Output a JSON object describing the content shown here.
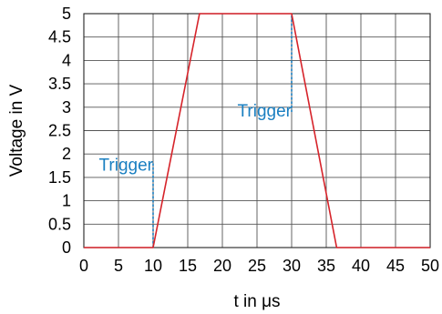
{
  "chart_data": {
    "type": "line",
    "title": "",
    "xlabel": "t in μs",
    "ylabel": "Voltage in  V",
    "xlim": [
      0,
      50
    ],
    "ylim": [
      0,
      5
    ],
    "x_ticks": [
      0,
      5,
      10,
      15,
      20,
      25,
      30,
      35,
      40,
      45,
      50
    ],
    "y_ticks": [
      0,
      0.5,
      1,
      1.5,
      2,
      2.5,
      3,
      3.5,
      4,
      4.5,
      5
    ],
    "grid": true,
    "series": [
      {
        "color": "#d6232a",
        "x": [
          0,
          10,
          16.7,
          30,
          36.5,
          50
        ],
        "y": [
          0,
          0,
          5,
          5,
          0,
          0
        ]
      }
    ],
    "annotations": [
      {
        "text": "Trigger",
        "x": 10,
        "y_from": 0,
        "y_to": 1.8,
        "color": "#1a7fc1"
      },
      {
        "text": "Trigger",
        "x": 30,
        "y_from": 2.9,
        "y_to": 5,
        "color": "#1a7fc1"
      }
    ]
  }
}
